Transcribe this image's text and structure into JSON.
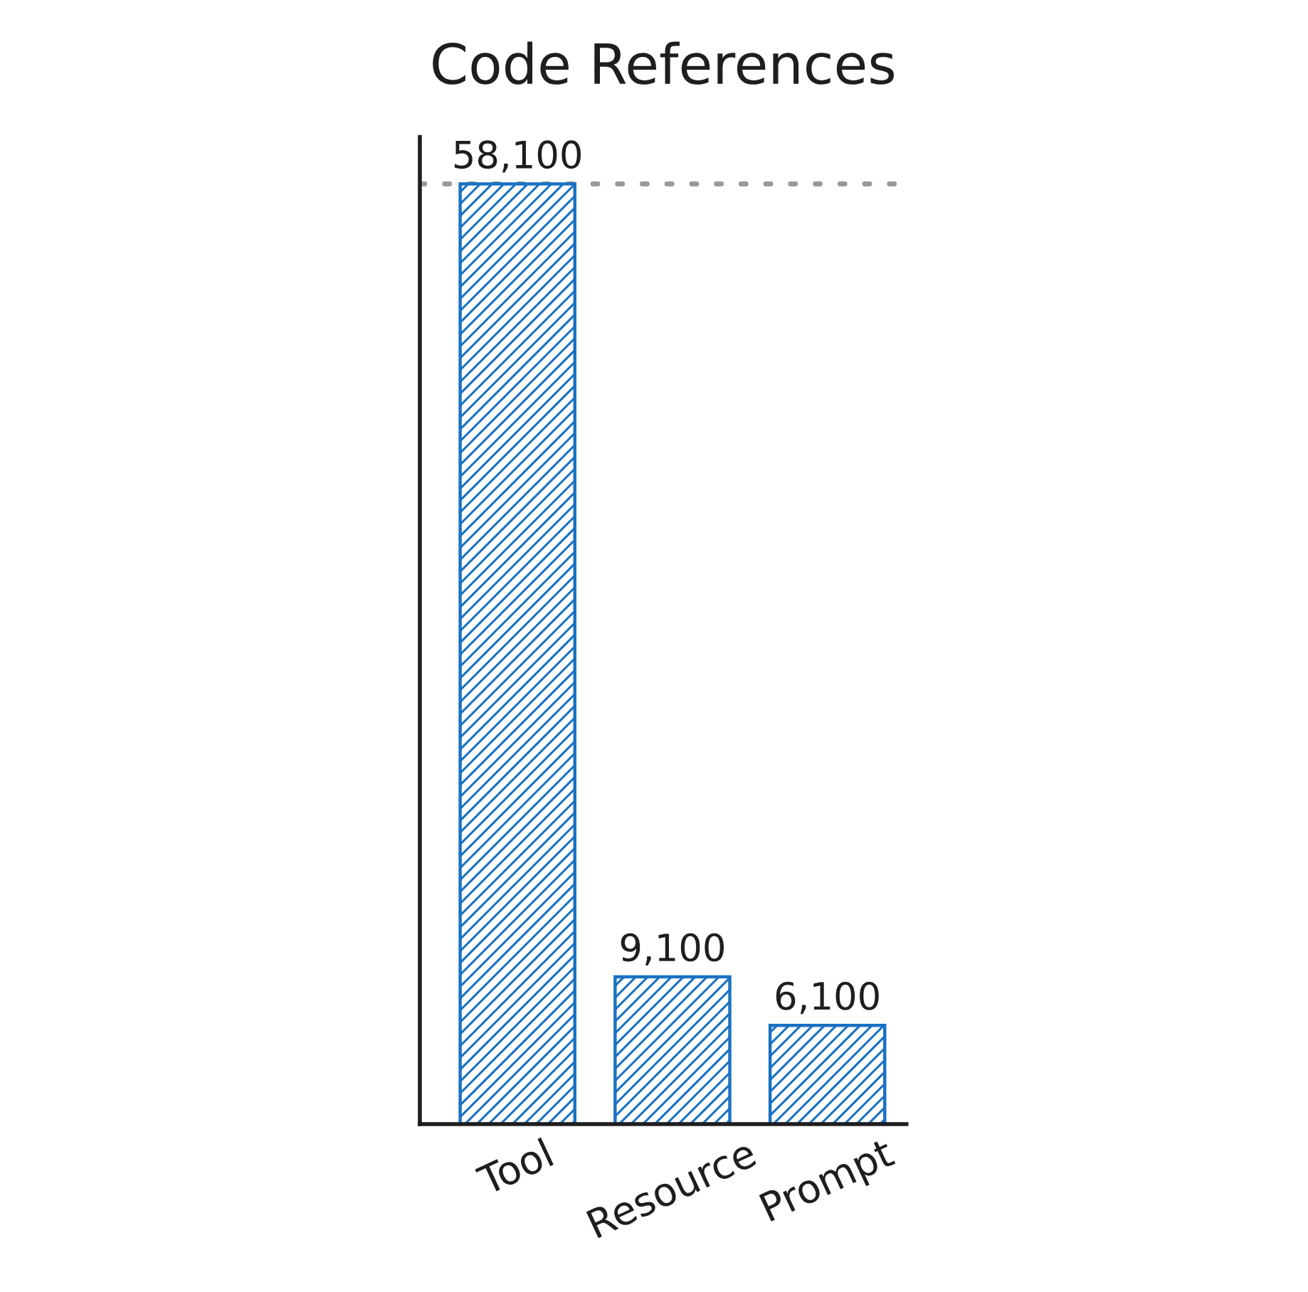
{
  "chart_data": {
    "type": "bar",
    "title": "Code References",
    "categories": [
      "Tool",
      "Resource",
      "Prompt"
    ],
    "values": [
      58100,
      9100,
      6100
    ],
    "value_labels": [
      "58,100",
      "9,100",
      "6,100"
    ],
    "color": "#1971c2",
    "tick_labels": "x",
    "grid": false,
    "legend": false,
    "ref_lines": [
      {
        "axis": "y",
        "value": 58100,
        "color": "#999999",
        "line_style": "dotted"
      }
    ]
  }
}
